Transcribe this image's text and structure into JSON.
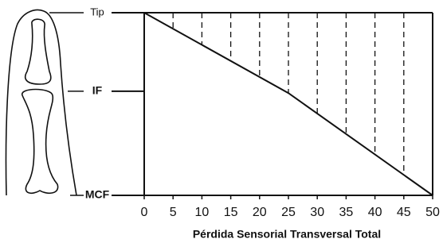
{
  "chart_data": {
    "type": "line",
    "x_label": "Pérdida Sensorial Transversal Total",
    "x": [
      0,
      25,
      50
    ],
    "series": [
      {
        "values": [
          100,
          56,
          0
        ],
        "color": "#111111"
      }
    ],
    "xlim": [
      0,
      50
    ],
    "xticks": [
      0,
      5,
      10,
      15,
      20,
      25,
      30,
      35,
      40,
      45,
      50
    ],
    "ylim": [
      0,
      100
    ],
    "yticks": [
      {
        "value": 100,
        "label": "Tip"
      },
      {
        "value": 57,
        "label": "IF"
      },
      {
        "value": 0,
        "label": "MCF"
      }
    ],
    "grid": true
  }
}
